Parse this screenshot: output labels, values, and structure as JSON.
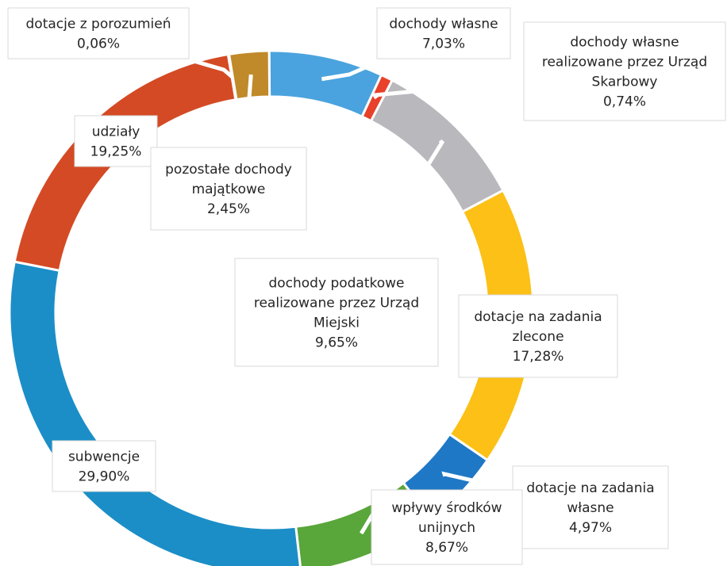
{
  "chart_data": {
    "type": "pie",
    "donut": true,
    "title": "",
    "slices": [
      {
        "label": [
          "dochody własne",
          "7,03%"
        ],
        "value": 7.03,
        "color": "#4aa3de"
      },
      {
        "label": [
          "dochody własne",
          "realizowane przez Urząd",
          "Skarbowy",
          "0,74%"
        ],
        "value": 0.74,
        "color": "#e8402a"
      },
      {
        "label": [
          "dochody podatkowe",
          "realizowane przez Urząd",
          "Miejski",
          "9,65%"
        ],
        "value": 9.65,
        "color": "#b9b9bd"
      },
      {
        "label": [
          "dotacje na zadania",
          "zlecone",
          "17,28%"
        ],
        "value": 17.28,
        "color": "#fcc016"
      },
      {
        "label": [
          "dotacje na zadania",
          "własne",
          "4,97%"
        ],
        "value": 4.97,
        "color": "#1f78c6"
      },
      {
        "label": [
          "wpływy środków",
          "unijnych",
          "8,67%"
        ],
        "value": 8.67,
        "color": "#59a63a"
      },
      {
        "label": [
          "subwencje",
          "29,90%"
        ],
        "value": 29.9,
        "color": "#1b8ec7"
      },
      {
        "label": [
          "udziały",
          "19,25%"
        ],
        "value": 19.25,
        "color": "#d44a24"
      },
      {
        "label": [
          "dotacje z porozumień",
          "0,06%"
        ],
        "value": 0.06,
        "color": "#9a8e2c"
      },
      {
        "label": [
          "pozostałe dochody",
          "majątkowe",
          "2,45%"
        ],
        "value": 2.45,
        "color": "#c08a2a"
      }
    ]
  }
}
